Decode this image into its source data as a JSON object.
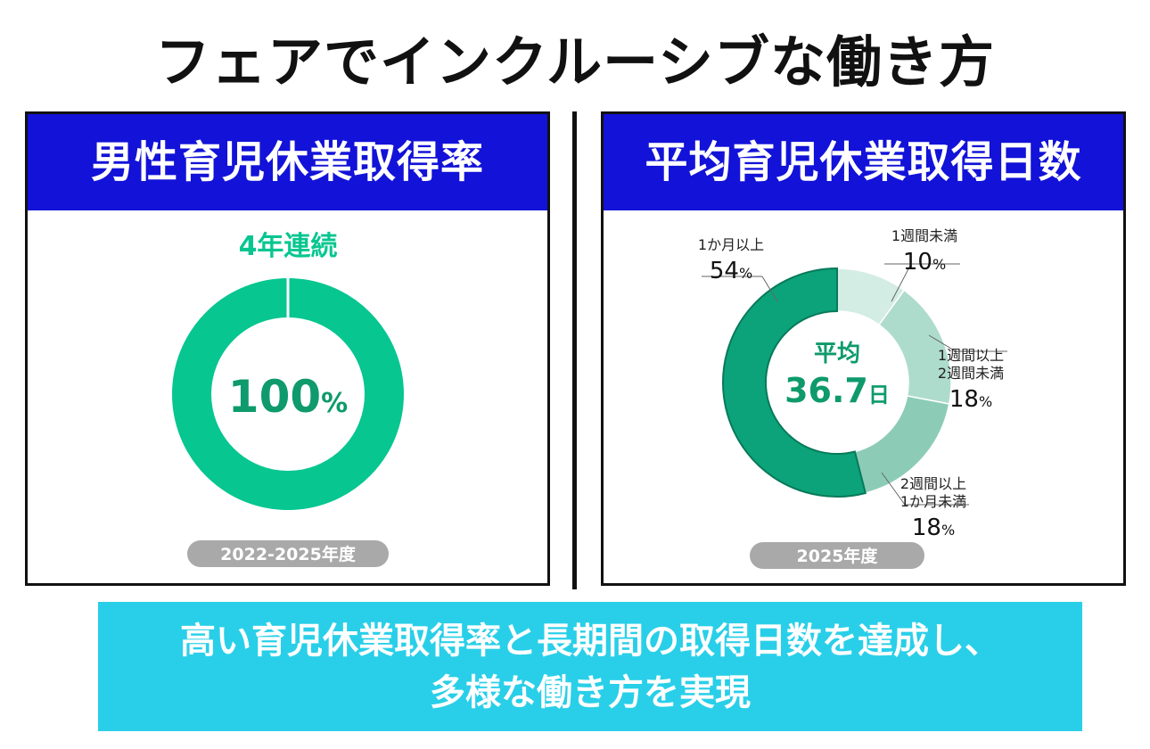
{
  "page": {
    "title": "フェアでインクルーシブな働き方",
    "banner_line1": "高い育児休業取得率と長期間の取得日数を達成し、",
    "banner_line2": "多様な働き方を実現"
  },
  "colors": {
    "header_blue": "#1212d8",
    "banner_cyan": "#29cfe8",
    "donut_green": "#07c690",
    "pill_gray": "#a9a9a9",
    "center_text_green": "#0e9a6c"
  },
  "chart_data": [
    {
      "type": "pie",
      "title": "男性育児休業取得率",
      "annotation": "4年連続",
      "center_value": "100",
      "center_unit": "%",
      "period": "2022-2025年度",
      "slices": [
        {
          "label": "",
          "value": 100,
          "color": "#07c690"
        }
      ]
    },
    {
      "type": "pie",
      "title": "平均育児休業取得日数",
      "center_label": "平均",
      "center_value": "36.7",
      "center_unit": "日",
      "period": "2025年度",
      "slices": [
        {
          "label_lines": [
            "1週間未満"
          ],
          "value": 10,
          "unit": "%",
          "color": "#d3ece4"
        },
        {
          "label_lines": [
            "1週間以上",
            "2週間未満"
          ],
          "value": 18,
          "unit": "%",
          "color": "#aedccc"
        },
        {
          "label_lines": [
            "2週間以上",
            "1か月未満"
          ],
          "value": 18,
          "unit": "%",
          "color": "#8cccb7"
        },
        {
          "label_lines": [
            "1か月以上"
          ],
          "value": 54,
          "unit": "%",
          "color": "#0ca37a"
        }
      ]
    }
  ]
}
